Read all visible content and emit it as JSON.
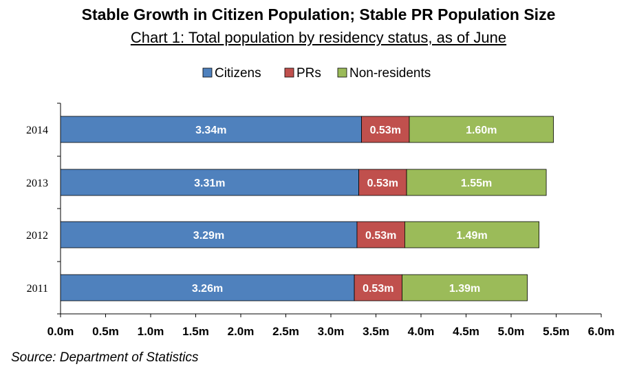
{
  "title": "Stable Growth in Citizen Population; Stable PR Population Size",
  "subtitle": "Chart 1: Total population by residency status, as of June",
  "source": "Source: Department of Statistics",
  "chart_data": {
    "type": "bar",
    "orientation": "horizontal",
    "stacked": true,
    "categories": [
      "2014",
      "2013",
      "2012",
      "2011"
    ],
    "series": [
      {
        "name": "Citizens",
        "color": "#4f81bd",
        "values": [
          3.34,
          3.31,
          3.29,
          3.26
        ],
        "labels": [
          "3.34m",
          "3.31m",
          "3.29m",
          "3.26m"
        ]
      },
      {
        "name": "PRs",
        "color": "#c0504d",
        "values": [
          0.53,
          0.53,
          0.53,
          0.53
        ],
        "labels": [
          "0.53m",
          "0.53m",
          "0.53m",
          "0.53m"
        ]
      },
      {
        "name": "Non-residents",
        "color": "#9bbb59",
        "values": [
          1.6,
          1.55,
          1.49,
          1.39
        ],
        "labels": [
          "1.60m",
          "1.55m",
          "1.49m",
          "1.39m"
        ]
      }
    ],
    "xlim": [
      0,
      6
    ],
    "xticks": [
      0,
      0.5,
      1.0,
      1.5,
      2.0,
      2.5,
      3.0,
      3.5,
      4.0,
      4.5,
      5.0,
      5.5,
      6.0
    ],
    "xtick_labels": [
      "0.0m",
      "0.5m",
      "1.0m",
      "1.5m",
      "2.0m",
      "2.5m",
      "3.0m",
      "3.5m",
      "4.0m",
      "4.5m",
      "5.0m",
      "5.5m",
      "6.0m"
    ],
    "legend_position": "top",
    "grid": false
  }
}
